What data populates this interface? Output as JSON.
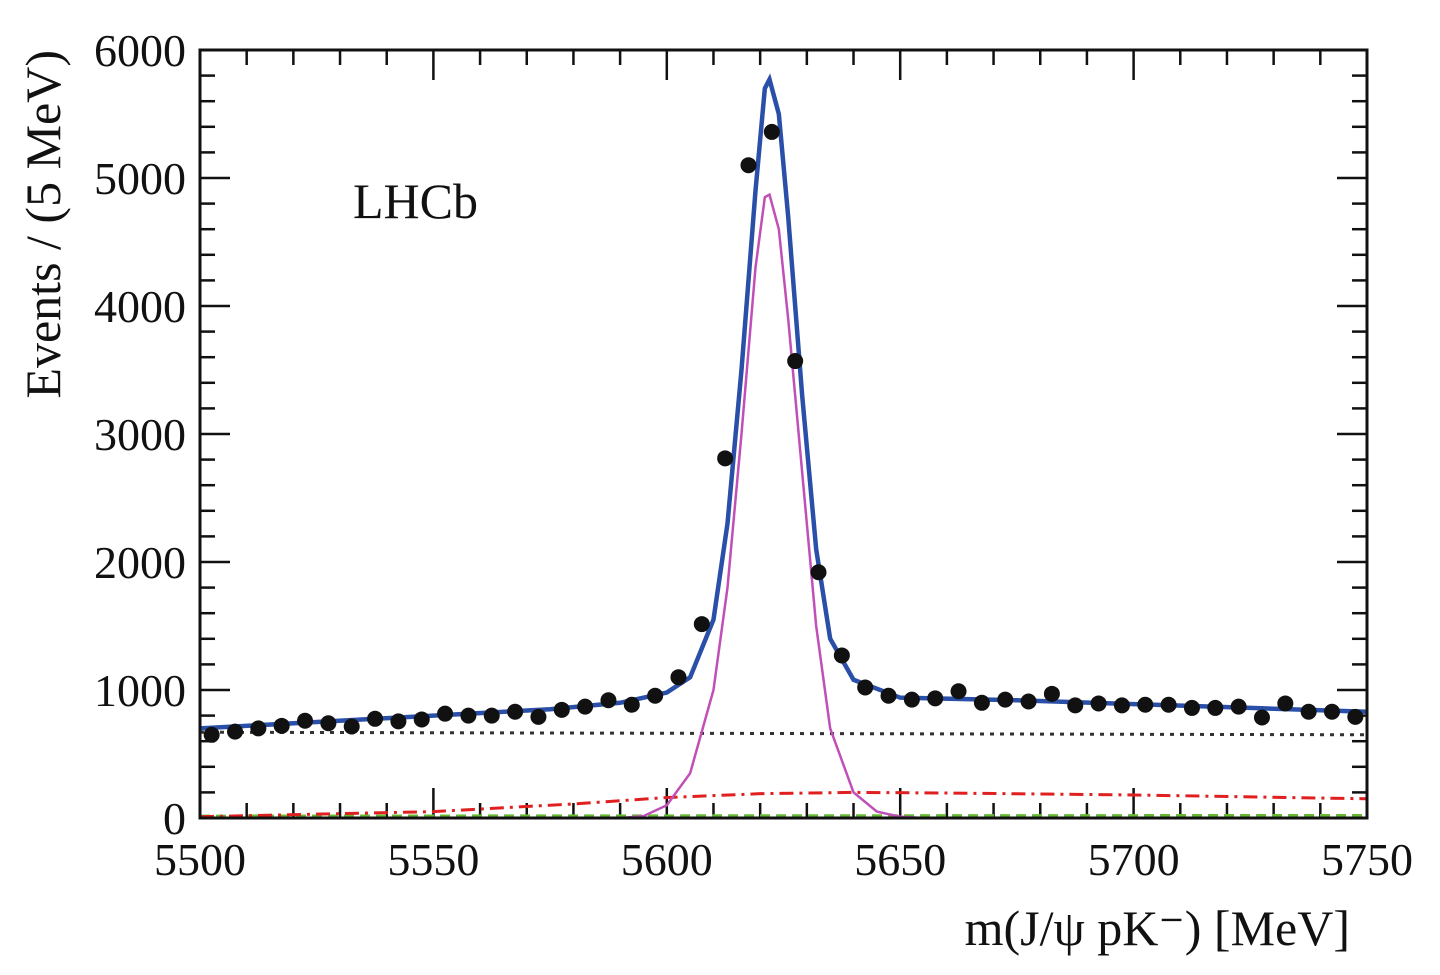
{
  "chart_data": {
    "type": "scatter",
    "annotation": "LHCb",
    "x_label": "m(J/ψ pK⁻) [MeV]",
    "y_label": "Events / (5 MeV)",
    "xlim": [
      5500,
      5750
    ],
    "ylim": [
      0,
      6000
    ],
    "xticks": [
      5500,
      5550,
      5600,
      5650,
      5700,
      5750
    ],
    "yticks": [
      0,
      1000,
      2000,
      3000,
      4000,
      5000,
      6000
    ],
    "minor_per_major": 5,
    "series": [
      {
        "type": "line",
        "color": "#333333",
        "dash": "4,6",
        "x": [
          5500,
          5750
        ],
        "values": [
          670,
          650
        ]
      },
      {
        "type": "line",
        "color": "#66bb33",
        "dash": "10,6",
        "x": [
          5500,
          5750
        ],
        "values": [
          15,
          20
        ]
      },
      {
        "type": "line",
        "color": "#e02020",
        "dash": "14,6,3,6",
        "x": [
          5500,
          5550,
          5580,
          5600,
          5620,
          5640,
          5660,
          5700,
          5750
        ],
        "values": [
          10,
          50,
          110,
          160,
          190,
          200,
          195,
          180,
          150
        ]
      },
      {
        "type": "line",
        "color": "#c04fb8",
        "dash": "",
        "x": [
          5590,
          5595,
          5600,
          5605,
          5610,
          5613,
          5616,
          5619,
          5621,
          5622,
          5624,
          5626,
          5629,
          5632,
          5635,
          5640,
          5645,
          5650,
          5655
        ],
        "values": [
          0,
          15,
          100,
          350,
          1000,
          1800,
          3000,
          4300,
          4850,
          4870,
          4600,
          3900,
          2700,
          1500,
          700,
          200,
          50,
          10,
          0
        ]
      },
      {
        "type": "line",
        "color": "#2a4fa8",
        "dash": "",
        "x": [
          5500,
          5525,
          5550,
          5575,
          5590,
          5600,
          5605,
          5610,
          5613,
          5616,
          5619,
          5621,
          5622,
          5624,
          5626,
          5629,
          5632,
          5635,
          5640,
          5650,
          5675,
          5700,
          5725,
          5750
        ],
        "values": [
          700,
          750,
          800,
          850,
          900,
          980,
          1100,
          1550,
          2300,
          3500,
          4900,
          5700,
          5770,
          5500,
          4700,
          3300,
          2100,
          1400,
          1080,
          940,
          920,
          890,
          860,
          830
        ]
      },
      {
        "type": "points",
        "color": "#111111",
        "x": [
          5502.5,
          5507.5,
          5512.5,
          5517.5,
          5522.5,
          5527.5,
          5532.5,
          5537.5,
          5542.5,
          5547.5,
          5552.5,
          5557.5,
          5562.5,
          5567.5,
          5572.5,
          5577.5,
          5582.5,
          5587.5,
          5592.5,
          5597.5,
          5602.5,
          5607.5,
          5612.5,
          5617.5,
          5622.5,
          5627.5,
          5632.5,
          5637.5,
          5642.5,
          5647.5,
          5652.5,
          5657.5,
          5662.5,
          5667.5,
          5672.5,
          5677.5,
          5682.5,
          5687.5,
          5692.5,
          5697.5,
          5702.5,
          5707.5,
          5712.5,
          5717.5,
          5722.5,
          5727.5,
          5732.5,
          5737.5,
          5742.5,
          5747.5
        ],
        "values": [
          650,
          675,
          700,
          720,
          760,
          740,
          715,
          775,
          755,
          770,
          815,
          800,
          800,
          830,
          790,
          845,
          870,
          920,
          885,
          955,
          1100,
          1515,
          2810,
          5100,
          5360,
          3570,
          1920,
          1270,
          1020,
          955,
          925,
          935,
          990,
          900,
          925,
          910,
          970,
          880,
          895,
          880,
          885,
          885,
          860,
          860,
          870,
          785,
          895,
          830,
          830,
          790
        ]
      }
    ]
  }
}
